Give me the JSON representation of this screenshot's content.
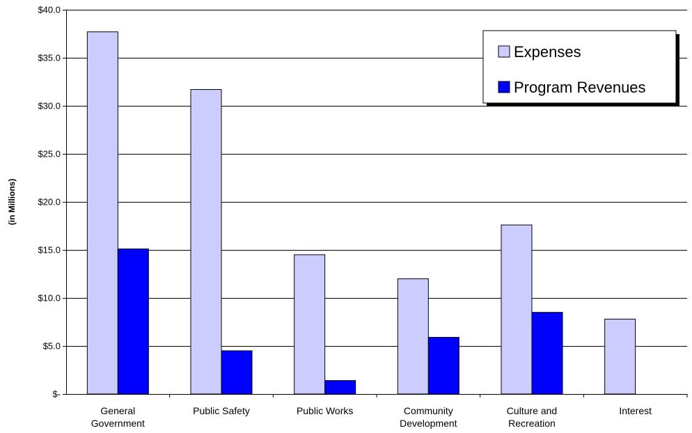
{
  "chart_data": {
    "type": "bar",
    "categories": [
      [
        "General",
        "Government"
      ],
      [
        "Public Safety"
      ],
      [
        "Public Works"
      ],
      [
        "Community",
        "Development"
      ],
      [
        "Culture and",
        "Recreation"
      ],
      [
        "Interest"
      ]
    ],
    "series": [
      {
        "name": "Expenses",
        "values": [
          37.7,
          31.7,
          14.5,
          12.0,
          17.6,
          7.8
        ]
      },
      {
        "name": "Program Revenues",
        "values": [
          15.1,
          4.5,
          1.4,
          5.9,
          8.5,
          0
        ]
      }
    ],
    "ylabel": "(in Millions)",
    "ylim": [
      0,
      40
    ],
    "yticks": [
      {
        "value": 0,
        "label": "$-"
      },
      {
        "value": 5,
        "label": "$5.0"
      },
      {
        "value": 10,
        "label": "$10.0"
      },
      {
        "value": 15,
        "label": "$15.0"
      },
      {
        "value": 20,
        "label": "$20.0"
      },
      {
        "value": 25,
        "label": "$25.0"
      },
      {
        "value": 30,
        "label": "$30.0"
      },
      {
        "value": 35,
        "label": "$35.0"
      },
      {
        "value": 40,
        "label": "$40.0"
      }
    ],
    "grid": true,
    "legend_position": "top-right",
    "colors": {
      "Expenses": "#ccccff",
      "Program Revenues": "#0000ff"
    }
  }
}
